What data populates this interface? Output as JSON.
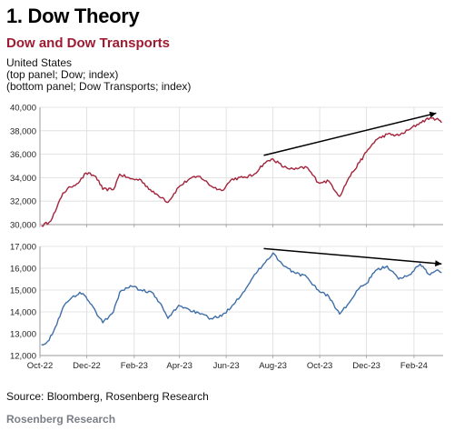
{
  "header": {
    "heading": "1. Dow Theory",
    "title": "Dow and Dow Transports",
    "subtitle_lines": [
      "United States",
      "(top panel; Dow; index)",
      "(bottom panel; Dow Transports; index)"
    ]
  },
  "footer": {
    "source": "Source: Bloomberg, Rosenberg Research",
    "brand": "Rosenberg Research"
  },
  "colors": {
    "dow": "#a3243b",
    "transports": "#3f6fa8",
    "trend": "#000000",
    "grid": "#dcdcdc",
    "axis": "#9a9a9a"
  },
  "chart_data": [
    {
      "type": "line",
      "x_tick_labels": [
        "Oct-22",
        "Dec-22",
        "Feb-23",
        "Apr-23",
        "Jun-23",
        "Aug-23",
        "Oct-23",
        "Dec-23",
        "Feb-24"
      ],
      "x_range": [
        "2022-10-01",
        "2024-03-10"
      ],
      "y_tick_labels": [
        "30,000",
        "32,000",
        "34,000",
        "36,000",
        "38,000",
        "40,000"
      ],
      "ylim": [
        30000,
        40000
      ],
      "grid": true,
      "series": [
        {
          "color": "#a3243b",
          "points": [
            [
              "2022-10-03",
              29900
            ],
            [
              "2022-10-13",
              30200
            ],
            [
              "2022-10-21",
              31100
            ],
            [
              "2022-10-31",
              32700
            ],
            [
              "2022-11-10",
              33200
            ],
            [
              "2022-11-22",
              33700
            ],
            [
              "2022-11-30",
              34400
            ],
            [
              "2022-12-13",
              34100
            ],
            [
              "2022-12-22",
              33000
            ],
            [
              "2023-01-05",
              33000
            ],
            [
              "2023-01-13",
              34300
            ],
            [
              "2023-01-27",
              33900
            ],
            [
              "2023-02-10",
              33800
            ],
            [
              "2023-02-24",
              32800
            ],
            [
              "2023-03-10",
              32300
            ],
            [
              "2023-03-17",
              31900
            ],
            [
              "2023-03-31",
              33200
            ],
            [
              "2023-04-14",
              33900
            ],
            [
              "2023-04-28",
              34100
            ],
            [
              "2023-05-12",
              33300
            ],
            [
              "2023-05-26",
              32900
            ],
            [
              "2023-06-09",
              33900
            ],
            [
              "2023-06-23",
              34000
            ],
            [
              "2023-07-06",
              34200
            ],
            [
              "2023-07-20",
              35200
            ],
            [
              "2023-08-01",
              35600
            ],
            [
              "2023-08-15",
              34900
            ],
            [
              "2023-08-29",
              34700
            ],
            [
              "2023-09-14",
              34900
            ],
            [
              "2023-09-29",
              33600
            ],
            [
              "2023-10-13",
              33700
            ],
            [
              "2023-10-27",
              32400
            ],
            [
              "2023-11-08",
              34000
            ],
            [
              "2023-11-22",
              35300
            ],
            [
              "2023-12-01",
              36200
            ],
            [
              "2023-12-13",
              37200
            ],
            [
              "2023-12-28",
              37700
            ],
            [
              "2024-01-12",
              37600
            ],
            [
              "2024-01-26",
              38100
            ],
            [
              "2024-02-09",
              38700
            ],
            [
              "2024-02-22",
              39100
            ],
            [
              "2024-03-01",
              39000
            ],
            [
              "2024-03-08",
              38700
            ]
          ]
        }
      ],
      "trendline": {
        "start": [
          "2023-07-20",
          35900
        ],
        "end": [
          "2024-03-01",
          39500
        ]
      }
    },
    {
      "type": "line",
      "x_tick_labels": [
        "Oct-22",
        "Dec-22",
        "Feb-23",
        "Apr-23",
        "Jun-23",
        "Aug-23",
        "Oct-23",
        "Dec-23",
        "Feb-24"
      ],
      "x_range": [
        "2022-10-01",
        "2024-03-10"
      ],
      "y_tick_labels": [
        "12,000",
        "13,000",
        "14,000",
        "15,000",
        "16,000",
        "17,000"
      ],
      "ylim": [
        12000,
        17000
      ],
      "grid": true,
      "series": [
        {
          "color": "#3f6fa8",
          "points": [
            [
              "2022-10-03",
              12500
            ],
            [
              "2022-10-13",
              12700
            ],
            [
              "2022-10-21",
              13300
            ],
            [
              "2022-10-31",
              14200
            ],
            [
              "2022-11-10",
              14600
            ],
            [
              "2022-11-22",
              14900
            ],
            [
              "2022-11-30",
              14700
            ],
            [
              "2022-12-13",
              14000
            ],
            [
              "2022-12-22",
              13500
            ],
            [
              "2023-01-05",
              14000
            ],
            [
              "2023-01-13",
              14900
            ],
            [
              "2023-01-27",
              15200
            ],
            [
              "2023-02-10",
              15000
            ],
            [
              "2023-02-24",
              14900
            ],
            [
              "2023-03-10",
              14200
            ],
            [
              "2023-03-17",
              13700
            ],
            [
              "2023-03-31",
              14300
            ],
            [
              "2023-04-14",
              14100
            ],
            [
              "2023-04-28",
              13900
            ],
            [
              "2023-05-12",
              13700
            ],
            [
              "2023-05-26",
              13800
            ],
            [
              "2023-06-09",
              14300
            ],
            [
              "2023-06-23",
              14900
            ],
            [
              "2023-07-06",
              15600
            ],
            [
              "2023-07-20",
              16200
            ],
            [
              "2023-08-01",
              16700
            ],
            [
              "2023-08-15",
              16100
            ],
            [
              "2023-08-29",
              15800
            ],
            [
              "2023-09-14",
              15600
            ],
            [
              "2023-09-29",
              15000
            ],
            [
              "2023-10-13",
              14700
            ],
            [
              "2023-10-27",
              13900
            ],
            [
              "2023-11-08",
              14400
            ],
            [
              "2023-11-22",
              15100
            ],
            [
              "2023-12-01",
              15300
            ],
            [
              "2023-12-13",
              15900
            ],
            [
              "2023-12-28",
              16100
            ],
            [
              "2024-01-12",
              15500
            ],
            [
              "2024-01-26",
              15700
            ],
            [
              "2024-02-09",
              16200
            ],
            [
              "2024-02-22",
              15700
            ],
            [
              "2024-03-01",
              15900
            ],
            [
              "2024-03-08",
              15800
            ]
          ]
        }
      ],
      "trendline": {
        "start": [
          "2023-07-20",
          16900
        ],
        "end": [
          "2024-03-08",
          16200
        ]
      }
    }
  ]
}
